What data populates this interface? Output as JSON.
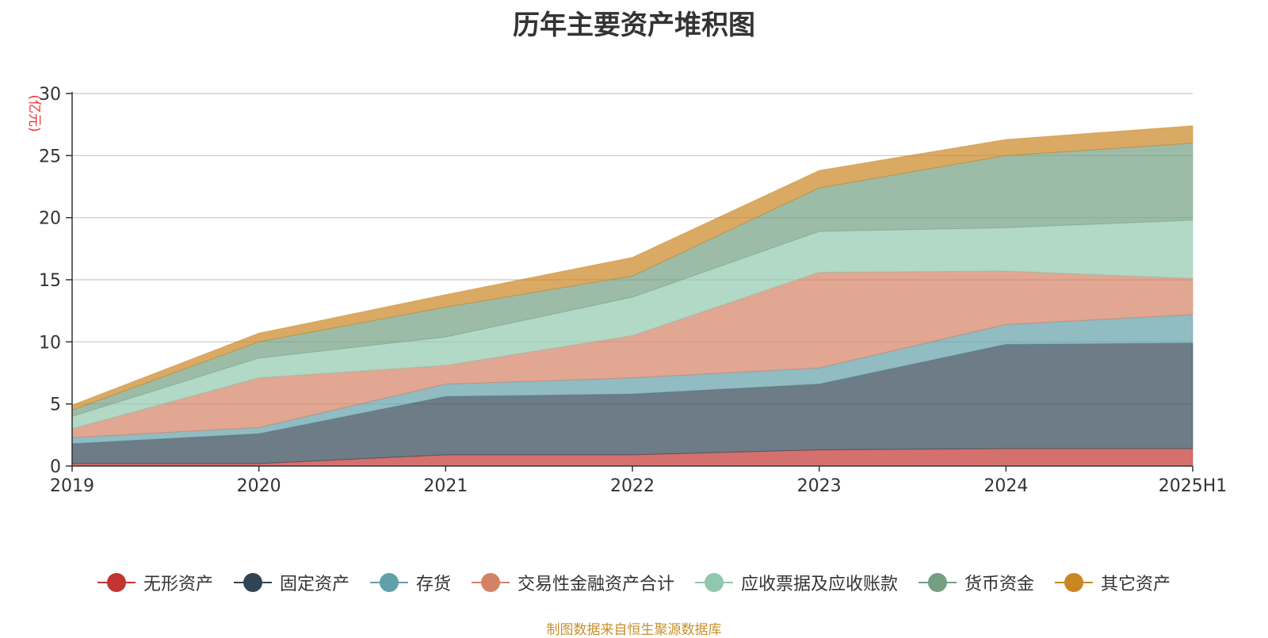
{
  "header": {
    "title": "历年主要资产堆积图"
  },
  "footer": {
    "source": "制图数据来自恒生聚源数据库"
  },
  "chart_data": {
    "type": "area",
    "stacked": true,
    "title": "历年主要资产堆积图",
    "ylabel": "(亿元)",
    "xlabel": "",
    "ylim": [
      0,
      30
    ],
    "yticks": [
      0,
      5,
      10,
      15,
      20,
      25,
      30
    ],
    "grid": true,
    "legend_position": "bottom",
    "categories": [
      "2019",
      "2020",
      "2021",
      "2022",
      "2023",
      "2024",
      "2025H1"
    ],
    "series": [
      {
        "name": "无形资产",
        "color": "#c23531",
        "values": [
          0.2,
          0.2,
          0.9,
          0.9,
          1.3,
          1.4,
          1.4
        ]
      },
      {
        "name": "固定资产",
        "color": "#2f4554",
        "values": [
          1.6,
          2.4,
          4.7,
          4.9,
          5.3,
          8.4,
          8.5
        ]
      },
      {
        "name": "存货",
        "color": "#61a0a8",
        "values": [
          0.5,
          0.5,
          1.0,
          1.3,
          1.3,
          1.6,
          2.3
        ]
      },
      {
        "name": "交易性金融资产合计",
        "color": "#d48265",
        "values": [
          0.7,
          4.0,
          1.5,
          3.4,
          7.7,
          4.3,
          2.9
        ]
      },
      {
        "name": "应收票据及应收账款",
        "color": "#91c7ae",
        "values": [
          1.0,
          1.6,
          2.3,
          3.1,
          3.3,
          3.5,
          4.7
        ]
      },
      {
        "name": "货币资金",
        "color": "#749f83",
        "values": [
          0.5,
          1.3,
          2.4,
          1.7,
          3.5,
          5.8,
          6.2
        ]
      },
      {
        "name": "其它资产",
        "color": "#ca8622",
        "values": [
          0.4,
          0.7,
          1.0,
          1.5,
          1.4,
          1.3,
          1.4
        ]
      }
    ]
  }
}
